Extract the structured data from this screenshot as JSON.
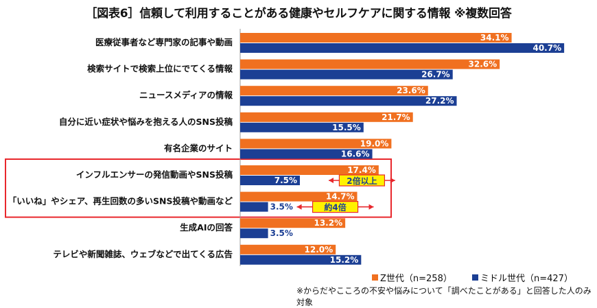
{
  "title": "［図表6］信頼して利用することがある健康やセルフケアに関する情報 ※複数回答",
  "chart_data": {
    "type": "bar",
    "orientation": "horizontal",
    "categories": [
      "医療従事者など専門家の記事や動画",
      "検索サイトで検索上位にでてくる情報",
      "ニュースメディアの情報",
      "自分に近い症状や悩みを抱える人のSNS投稿",
      "有名企業のサイト",
      "インフルエンサーの発信動画やSNS投稿",
      "「いいね」やシェア、再生回数の多いSNS投稿や動画など",
      "生成AIの回答",
      "テレビや新聞雑誌、ウェブなどで出てくる広告"
    ],
    "series": [
      {
        "name": "Z世代（n=258）",
        "color": "#F07020",
        "values": [
          34.1,
          32.6,
          23.6,
          21.7,
          19.0,
          17.4,
          14.7,
          13.2,
          12.0
        ],
        "labels": [
          "34.1%",
          "32.6%",
          "23.6%",
          "21.7%",
          "19.0%",
          "17.4%",
          "14.7%",
          "13.2%",
          "12.0%"
        ]
      },
      {
        "name": "ミドル世代（n=427）",
        "color": "#1C3F94",
        "values": [
          40.7,
          26.7,
          27.2,
          15.5,
          16.6,
          7.5,
          3.5,
          3.5,
          15.2
        ],
        "labels": [
          "40.7%",
          "26.7%",
          "27.2%",
          "15.5%",
          "16.6%",
          "7.5%",
          "3.5%",
          "3.5%",
          "15.2%"
        ]
      }
    ],
    "xlim": [
      0,
      42
    ],
    "annotations": [
      {
        "category_index": 5,
        "text": "2倍以上"
      },
      {
        "category_index": 6,
        "text": "約4倍"
      }
    ],
    "highlight_categories": [
      5,
      6
    ],
    "highlight_color": "#E8272C"
  },
  "legend": {
    "z": "Z世代（n=258）",
    "middle": "ミドル世代（n=427）"
  },
  "footnote": "※からだやこころの不安や悩みについて「調べたことがある」と回答した人のみ対象"
}
